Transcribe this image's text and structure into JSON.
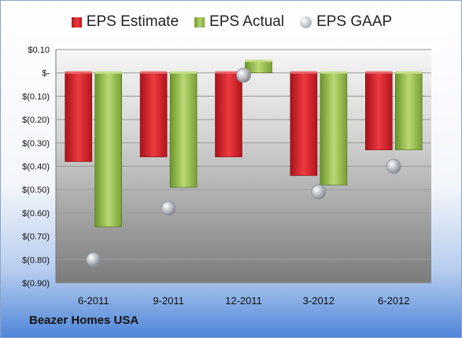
{
  "company": "Beazer Homes USA",
  "legend": {
    "estimate": "EPS Estimate",
    "actual": "EPS Actual",
    "gaap": "EPS GAAP"
  },
  "colors": {
    "estimate": "#d8262c",
    "actual": "#8fb844",
    "gaap": "#b8bcc2",
    "plot_bg_top": "#f4f4f4",
    "plot_bg_bottom": "#7d7d7d"
  },
  "chart_data": {
    "type": "bar",
    "categories": [
      "6-2011",
      "9-2011",
      "12-2011",
      "3-2012",
      "6-2012"
    ],
    "series": [
      {
        "name": "EPS Estimate",
        "values": [
          -0.38,
          -0.36,
          -0.36,
          -0.44,
          -0.33
        ]
      },
      {
        "name": "EPS Actual",
        "values": [
          -0.66,
          -0.49,
          0.05,
          -0.48,
          -0.33
        ]
      },
      {
        "name": "EPS GAAP",
        "values": [
          -0.8,
          -0.58,
          -0.01,
          -0.51,
          -0.4
        ]
      }
    ],
    "ylim": [
      -0.9,
      0.1
    ],
    "yticks": [
      0.1,
      0,
      -0.1,
      -0.2,
      -0.3,
      -0.4,
      -0.5,
      -0.6,
      -0.7,
      -0.8,
      -0.9
    ],
    "ytick_labels": [
      "$0.10",
      "$-",
      "$(0.10)",
      "$(0.20)",
      "$(0.30)",
      "$(0.40)",
      "$(0.50)",
      "$(0.60)",
      "$(0.70)",
      "$(0.80)",
      "$(0.90)"
    ],
    "grid": true,
    "legend_position": "top"
  }
}
